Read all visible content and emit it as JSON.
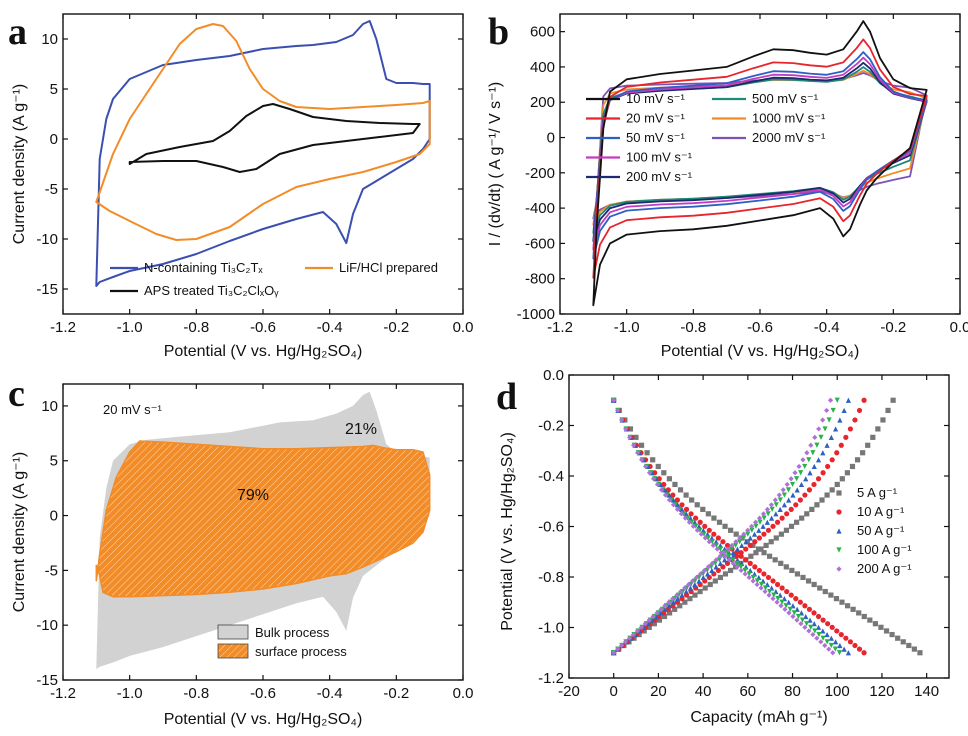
{
  "colors": {
    "blue": "#3b4fb0",
    "orange": "#f28c28",
    "black": "#111111",
    "red": "#e8242c",
    "steelblue": "#2e5fc2",
    "magenta": "#c23dc2",
    "navy": "#1f2a6e",
    "teal": "#1f8a7a",
    "purple": "#7d52b8",
    "gray": "#d2d2d2",
    "graysq": "#777777",
    "green": "#27b34a",
    "violet": "#b070d8"
  },
  "chart_data": [
    {
      "panel": "a",
      "type": "line",
      "xlabel": "Potential (V vs. Hg/Hg₂SO₄)",
      "ylabel": "Current density (A g⁻¹)",
      "xlim": [
        -1.2,
        0.0
      ],
      "ylim": [
        -17.5,
        12.5
      ],
      "xticks": [
        "-1.2",
        "-1.0",
        "-0.8",
        "-0.6",
        "-0.4",
        "-0.2",
        "0.0"
      ],
      "yticks": [
        "-15",
        "-10",
        "-5",
        "0",
        "5",
        "10"
      ],
      "series": [
        {
          "name": "N-containing Ti₃C₂Tₓ",
          "color": "blue",
          "x": [
            -1.1,
            -1.09,
            -1.07,
            -1.05,
            -1.0,
            -0.9,
            -0.8,
            -0.7,
            -0.6,
            -0.5,
            -0.45,
            -0.38,
            -0.33,
            -0.3,
            -0.28,
            -0.26,
            -0.23,
            -0.2,
            -0.15,
            -0.12,
            -0.1,
            -0.1,
            -0.12,
            -0.15,
            -0.2,
            -0.25,
            -0.3,
            -0.33,
            -0.35,
            -0.38,
            -0.42,
            -0.5,
            -0.6,
            -0.7,
            -0.8,
            -0.9,
            -1.0,
            -1.05,
            -1.09,
            -1.1,
            -1.1
          ],
          "y": [
            -14.7,
            -2.0,
            2.0,
            4.0,
            6.0,
            7.4,
            7.9,
            8.3,
            9.0,
            9.3,
            9.4,
            9.7,
            10.4,
            11.5,
            11.8,
            10.0,
            6.0,
            5.6,
            5.6,
            5.5,
            5.5,
            0.0,
            -1.0,
            -2.0,
            -3.0,
            -4.0,
            -5.0,
            -7.5,
            -10.4,
            -8.5,
            -7.3,
            -8.0,
            -9.0,
            -10.2,
            -11.5,
            -12.5,
            -13.2,
            -13.8,
            -14.3,
            -14.7,
            -14.7
          ]
        },
        {
          "name": "LiF/HCl prepared",
          "color": "orange",
          "x": [
            -1.1,
            -1.05,
            -1.0,
            -0.95,
            -0.9,
            -0.85,
            -0.8,
            -0.75,
            -0.72,
            -0.68,
            -0.64,
            -0.6,
            -0.55,
            -0.5,
            -0.4,
            -0.3,
            -0.2,
            -0.12,
            -0.1,
            -0.1,
            -0.13,
            -0.2,
            -0.3,
            -0.4,
            -0.5,
            -0.6,
            -0.7,
            -0.8,
            -0.86,
            -0.92,
            -1.0,
            -1.06,
            -1.1
          ],
          "y": [
            -6.3,
            -1.5,
            2.0,
            4.5,
            7.0,
            9.5,
            11.0,
            11.5,
            11.3,
            9.8,
            7.0,
            5.0,
            3.8,
            3.2,
            3.0,
            3.2,
            3.4,
            3.6,
            3.8,
            -0.5,
            -1.5,
            -2.3,
            -3.3,
            -4.0,
            -4.8,
            -6.5,
            -8.8,
            -10.0,
            -10.1,
            -9.5,
            -8.2,
            -7.2,
            -6.3
          ]
        },
        {
          "name": "APS treated Ti₃C₂ClₓOᵧ",
          "color": "black",
          "x": [
            -1.0,
            -0.95,
            -0.85,
            -0.75,
            -0.7,
            -0.65,
            -0.6,
            -0.57,
            -0.52,
            -0.45,
            -0.35,
            -0.25,
            -0.15,
            -0.13,
            -0.15,
            -0.25,
            -0.35,
            -0.45,
            -0.55,
            -0.62,
            -0.67,
            -0.72,
            -0.8,
            -0.9,
            -1.0,
            -1.0
          ],
          "y": [
            -2.5,
            -1.5,
            -0.8,
            -0.2,
            0.8,
            2.3,
            3.3,
            3.5,
            3.0,
            2.2,
            1.8,
            1.6,
            1.5,
            1.5,
            0.6,
            0.2,
            -0.2,
            -0.6,
            -1.5,
            -3.0,
            -3.3,
            -2.8,
            -2.2,
            -2.2,
            -2.3,
            -2.5
          ]
        }
      ],
      "legend": {
        "placement": "bottom-left"
      }
    },
    {
      "panel": "b",
      "type": "line",
      "xlabel": "Potential (V vs. Hg/Hg₂SO₄)",
      "ylabel": "I / (dv/dt) ( A g⁻¹/ V s⁻¹)",
      "xlim": [
        -1.2,
        0.0
      ],
      "ylim": [
        -1000,
        700
      ],
      "xticks": [
        "-1.2",
        "-1.0",
        "-0.8",
        "-0.6",
        "-0.4",
        "-0.2",
        "0.0"
      ],
      "yticks": [
        "-1000",
        "-800",
        "-600",
        "-400",
        "-200",
        "0",
        "200",
        "400",
        "600"
      ],
      "series": [
        {
          "name": "10 mV s⁻¹",
          "color": "black",
          "scale": 1.0,
          "cross": 0
        },
        {
          "name": "20 mV s⁻¹",
          "color": "red",
          "scale": 0.78,
          "cross": 0.05
        },
        {
          "name": "50 mV s⁻¹",
          "color": "steelblue",
          "scale": 0.62,
          "cross": 0.1
        },
        {
          "name": "100 mV s⁻¹",
          "color": "magenta",
          "scale": 0.55,
          "cross": 0.15
        },
        {
          "name": "200 mV s⁻¹",
          "color": "navy",
          "scale": 0.48,
          "cross": 0.2
        },
        {
          "name": "500 mV s⁻¹",
          "color": "teal",
          "scale": 0.42,
          "cross": 0.3
        },
        {
          "name": "1000 mV s⁻¹",
          "color": "orange",
          "scale": 0.36,
          "cross": 0.45
        },
        {
          "name": "2000 mV s⁻¹",
          "color": "purple",
          "scale": 0.3,
          "cross": 0.6
        }
      ],
      "reference_curve_10mV": {
        "upper_x": [
          -1.1,
          -1.09,
          -1.07,
          -1.05,
          -1.0,
          -0.9,
          -0.8,
          -0.7,
          -0.62,
          -0.56,
          -0.5,
          -0.45,
          -0.4,
          -0.35,
          -0.31,
          -0.29,
          -0.27,
          -0.24,
          -0.2,
          -0.15,
          -0.1
        ],
        "upper_y": [
          -950,
          -500,
          50,
          260,
          330,
          360,
          380,
          400,
          460,
          500,
          495,
          480,
          470,
          500,
          600,
          660,
          600,
          450,
          330,
          280,
          270
        ],
        "lower_x": [
          -0.1,
          -0.15,
          -0.2,
          -0.25,
          -0.28,
          -0.3,
          -0.33,
          -0.35,
          -0.38,
          -0.42,
          -0.5,
          -0.6,
          -0.7,
          -0.8,
          -0.9,
          -1.0,
          -1.05,
          -1.08,
          -1.1
        ],
        "lower_y": [
          270,
          -60,
          -140,
          -230,
          -300,
          -380,
          -520,
          -560,
          -460,
          -400,
          -440,
          -470,
          -500,
          -520,
          -530,
          -550,
          -600,
          -720,
          -950
        ]
      },
      "legend": {
        "placement": "center-left"
      }
    },
    {
      "panel": "c",
      "type": "area",
      "xlabel": "Potential (V vs. Hg/Hg₂SO₄)",
      "ylabel": "Current density (A g⁻¹)",
      "xlim": [
        -1.2,
        0.0
      ],
      "ylim": [
        -15,
        12
      ],
      "xticks": [
        "-1.2",
        "-1.0",
        "-0.8",
        "-0.6",
        "-0.4",
        "-0.2",
        "0.0"
      ],
      "yticks": [
        "-15",
        "-10",
        "-5",
        "0",
        "5",
        "10"
      ],
      "annotation_scanrate": "20 mV s⁻¹",
      "annotation_surface_pct": "79%",
      "annotation_bulk_pct": "21%",
      "series": [
        {
          "name": "Bulk process",
          "color": "gray",
          "x": [
            -1.1,
            -1.09,
            -1.07,
            -1.05,
            -1.0,
            -0.95,
            -0.85,
            -0.7,
            -0.6,
            -0.55,
            -0.45,
            -0.38,
            -0.33,
            -0.3,
            -0.28,
            -0.26,
            -0.23,
            -0.2,
            -0.15,
            -0.1,
            -0.1,
            -0.12,
            -0.15,
            -0.2,
            -0.25,
            -0.3,
            -0.33,
            -0.35,
            -0.38,
            -0.42,
            -0.5,
            -0.6,
            -0.7,
            -0.8,
            -0.9,
            -1.0,
            -1.05,
            -1.09,
            -1.1
          ],
          "y": [
            -14.0,
            -2.0,
            2.5,
            5.0,
            6.5,
            6.9,
            7.2,
            7.6,
            8.2,
            8.5,
            8.7,
            9.3,
            10.0,
            11.0,
            11.3,
            9.6,
            6.5,
            5.8,
            5.5,
            5.3,
            0.0,
            -1.0,
            -2.0,
            -3.2,
            -4.3,
            -5.5,
            -7.5,
            -10.5,
            -8.8,
            -7.4,
            -8.0,
            -9.0,
            -10.0,
            -11.0,
            -12.0,
            -12.8,
            -13.4,
            -13.8,
            -14.0
          ]
        },
        {
          "name": "surface process",
          "color": "orange",
          "x": [
            -1.1,
            -1.09,
            -1.07,
            -1.04,
            -1.0,
            -0.97,
            -0.9,
            -0.8,
            -0.7,
            -0.6,
            -0.5,
            -0.4,
            -0.3,
            -0.27,
            -0.24,
            -0.2,
            -0.15,
            -0.12,
            -0.1,
            -0.1,
            -0.12,
            -0.15,
            -0.2,
            -0.25,
            -0.3,
            -0.35,
            -0.4,
            -0.5,
            -0.6,
            -0.7,
            -0.8,
            -0.9,
            -1.0,
            -1.05,
            -1.08,
            -1.09,
            -1.1
          ],
          "y": [
            -6.0,
            -3.5,
            0.5,
            3.5,
            5.8,
            6.8,
            6.7,
            6.5,
            6.3,
            6.1,
            6.1,
            6.2,
            6.3,
            6.4,
            6.2,
            6.0,
            6.0,
            5.8,
            3.7,
            0.5,
            -1.5,
            -2.5,
            -3.3,
            -4.0,
            -4.7,
            -5.3,
            -5.5,
            -6.2,
            -6.7,
            -7.0,
            -7.2,
            -7.3,
            -7.4,
            -7.4,
            -7.0,
            -5.5,
            -4.5
          ]
        }
      ],
      "legend": {
        "placement": "bottom-center"
      }
    },
    {
      "panel": "d",
      "type": "scatter",
      "xlabel": "Capacity (mAh g⁻¹)",
      "ylabel": "Potential (V vs. Hg/Hg₂SO₄)",
      "xlim": [
        -20,
        150
      ],
      "ylim": [
        -1.2,
        0.0
      ],
      "xticks": [
        "-20",
        "0",
        "20",
        "40",
        "60",
        "80",
        "100",
        "120",
        "140"
      ],
      "yticks": [
        "-1.2",
        "-1.0",
        "-0.8",
        "-0.6",
        "-0.4",
        "-0.2",
        "0.0"
      ],
      "series": [
        {
          "name": "5 A g⁻¹",
          "color": "graysq",
          "marker": "square",
          "qmax": 125,
          "dmax": 137
        },
        {
          "name": "10 A g⁻¹",
          "color": "red",
          "marker": "circle",
          "qmax": 112,
          "dmax": 112
        },
        {
          "name": "50 A g⁻¹",
          "color": "steelblue",
          "marker": "triangle-up",
          "qmax": 105,
          "dmax": 105
        },
        {
          "name": "100 A g⁻¹",
          "color": "green",
          "marker": "triangle-down",
          "qmax": 100,
          "dmax": 101
        },
        {
          "name": "200 A g⁻¹",
          "color": "violet",
          "marker": "diamond",
          "qmax": 97,
          "dmax": 98
        }
      ],
      "potential_range": [
        -1.1,
        -0.1
      ],
      "legend": {
        "placement": "center-right"
      }
    }
  ],
  "panel_letters": [
    "a",
    "b",
    "c",
    "d"
  ]
}
